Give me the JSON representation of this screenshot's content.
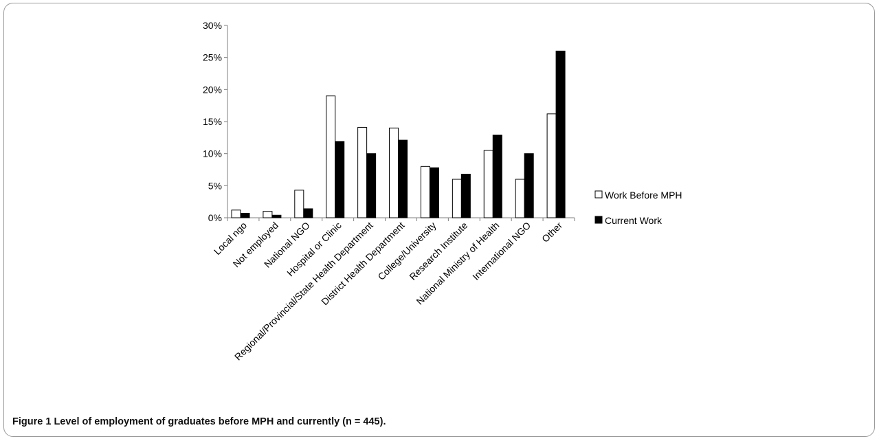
{
  "figure": {
    "label": "Figure 1",
    "caption": "Level of employment of graduates before MPH and currently (n = 445)."
  },
  "chart_data": {
    "type": "bar",
    "categories": [
      "Local ngo",
      "Not employed",
      "National NGO",
      "Hospital or Clinic",
      "Regional/Provincial/State Health Department",
      "District Health Department",
      "College/University",
      "Research Institute",
      "National Ministry of Health",
      "International NGO",
      "Other"
    ],
    "series": [
      {
        "name": "Work Before MPH",
        "color": "#ffffff",
        "values": [
          1.2,
          1.0,
          4.3,
          19.0,
          14.1,
          14.0,
          8.0,
          6.0,
          10.5,
          6.0,
          16.2
        ]
      },
      {
        "name": "Current Work",
        "color": "#000000",
        "values": [
          0.7,
          0.4,
          1.4,
          11.9,
          10.0,
          12.1,
          7.8,
          6.8,
          12.9,
          10.0,
          26.0
        ]
      }
    ],
    "ylim": [
      0,
      30
    ],
    "yticks": [
      "0%",
      "5%",
      "10%",
      "15%",
      "20%",
      "25%",
      "30%"
    ],
    "y_tick_values": [
      0,
      5,
      10,
      15,
      20,
      25,
      30
    ],
    "grid": false,
    "legend_position": "right",
    "title": "",
    "xlabel": "",
    "ylabel": ""
  }
}
